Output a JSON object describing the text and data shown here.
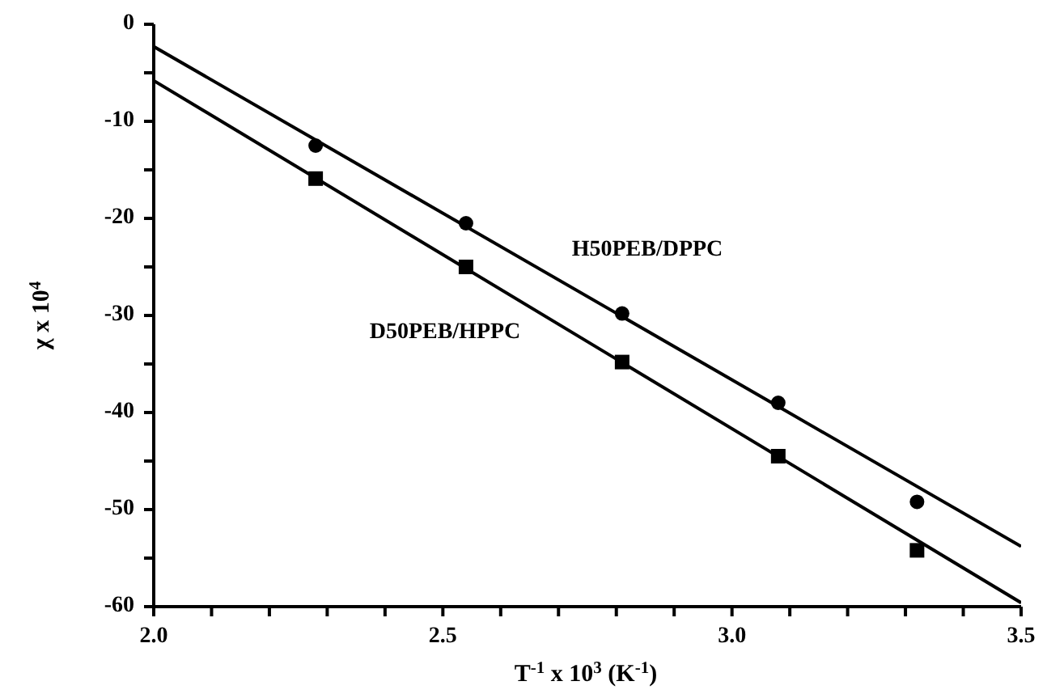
{
  "chart_data": {
    "type": "scatter",
    "xlabel": "T$^{-1}$ x 10$^{3}$ (K$^{-1}$)",
    "ylabel": "χ x 10$^{4}$",
    "xlim": [
      2.0,
      3.5
    ],
    "xticks": [
      {
        "value": 2.0,
        "label": "2.0"
      },
      {
        "value": 2.1,
        "label": null
      },
      {
        "value": 2.2,
        "label": null
      },
      {
        "value": 2.3,
        "label": null
      },
      {
        "value": 2.4,
        "label": null
      },
      {
        "value": 2.5,
        "label": "2.5"
      },
      {
        "value": 2.6,
        "label": null
      },
      {
        "value": 2.7,
        "label": null
      },
      {
        "value": 2.8,
        "label": null
      },
      {
        "value": 2.9,
        "label": null
      },
      {
        "value": 3.0,
        "label": "3.0"
      },
      {
        "value": 3.1,
        "label": null
      },
      {
        "value": 3.2,
        "label": null
      },
      {
        "value": 3.3,
        "label": null
      },
      {
        "value": 3.4,
        "label": null
      },
      {
        "value": 3.5,
        "label": "3.5"
      }
    ],
    "ylim": [
      -60,
      0
    ],
    "yticks": [
      -60,
      {
        "value": -55,
        "label": null
      },
      -50,
      {
        "value": -45,
        "label": null
      },
      -40,
      {
        "value": -35,
        "label": null
      },
      -30,
      {
        "value": -25,
        "label": null
      },
      -20,
      {
        "value": -15,
        "label": null
      },
      -10,
      {
        "value": -5,
        "label": null
      },
      0
    ],
    "grid": false,
    "legend": false,
    "series": [
      {
        "marker": "circle",
        "color": "#000000",
        "x": [
          2.28,
          2.54,
          2.81,
          3.08,
          3.32
        ],
        "values": [
          -12.5,
          -20.5,
          -29.8,
          -39,
          -49.2
        ]
      },
      {
        "marker": "square",
        "color": "#000000",
        "x": [
          2.28,
          2.54,
          2.81,
          3.08,
          3.32
        ],
        "values": [
          -15.9,
          -25,
          -34.8,
          -44.5,
          -54.2
        ]
      },
      {
        "type": "line",
        "marker": "none",
        "line_style": "solid",
        "color": "#000000",
        "x": [
          2.0,
          3.5
        ],
        "values": [
          -2.3,
          -53.8
        ]
      },
      {
        "type": "line",
        "marker": "none",
        "line_style": "solid",
        "color": "#000000",
        "x": [
          2.0,
          3.5
        ],
        "values": [
          -5.8,
          -59.6
        ]
      }
    ],
    "annotations": [
      "H50PEB/DPPC",
      "D50PEB/HPPC"
    ]
  }
}
